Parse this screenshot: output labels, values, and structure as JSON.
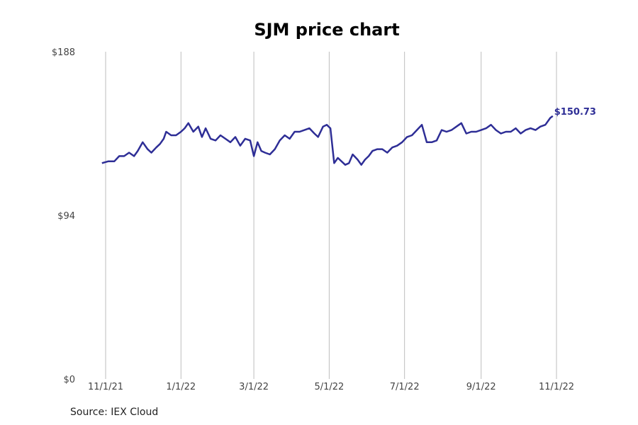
{
  "chart_data": {
    "type": "line",
    "title": "SJM price chart",
    "source": "Source: IEX Cloud",
    "ylim": [
      0,
      188
    ],
    "y_ticks": [
      "$188",
      "$94",
      "$0"
    ],
    "y_tick_values": [
      188,
      94,
      0
    ],
    "x_ticks": [
      "11/1/21",
      "1/1/22",
      "3/1/22",
      "5/1/22",
      "7/1/22",
      "9/1/22",
      "11/1/22"
    ],
    "x_tick_dates": [
      "2021-11-01",
      "2022-01-01",
      "2022-03-01",
      "2022-05-01",
      "2022-07-01",
      "2022-09-01",
      "2022-11-01"
    ],
    "grid": "vertical",
    "end_label": "$150.73",
    "line_color": "#2e2e96",
    "series": [
      {
        "x": [
          "2021-10-29",
          "2021-11-03",
          "2021-11-08",
          "2021-11-12",
          "2021-11-16",
          "2021-11-20",
          "2021-11-24",
          "2021-11-27",
          "2021-12-01",
          "2021-12-05",
          "2021-12-08",
          "2021-12-12",
          "2021-12-15",
          "2021-12-18",
          "2021-12-20",
          "2021-12-24",
          "2021-12-28",
          "2022-01-01",
          "2022-01-04",
          "2022-01-07",
          "2022-01-11",
          "2022-01-15",
          "2022-01-18",
          "2022-01-21",
          "2022-01-25",
          "2022-01-29",
          "2022-02-02",
          "2022-02-06",
          "2022-02-10",
          "2022-02-14",
          "2022-02-18",
          "2022-02-22",
          "2022-02-26",
          "2022-03-01",
          "2022-03-04",
          "2022-03-07",
          "2022-03-10",
          "2022-03-14",
          "2022-03-18",
          "2022-03-22",
          "2022-03-26",
          "2022-03-30",
          "2022-04-03",
          "2022-04-07",
          "2022-04-11",
          "2022-04-15",
          "2022-04-19",
          "2022-04-22",
          "2022-04-26",
          "2022-04-29",
          "2022-05-02",
          "2022-05-05",
          "2022-05-08",
          "2022-05-11",
          "2022-05-14",
          "2022-05-17",
          "2022-05-20",
          "2022-05-24",
          "2022-05-27",
          "2022-05-30",
          "2022-06-02",
          "2022-06-05",
          "2022-06-09",
          "2022-06-13",
          "2022-06-17",
          "2022-06-21",
          "2022-06-25",
          "2022-06-29",
          "2022-07-03",
          "2022-07-07",
          "2022-07-11",
          "2022-07-15",
          "2022-07-19",
          "2022-07-23",
          "2022-07-27",
          "2022-07-31",
          "2022-08-04",
          "2022-08-08",
          "2022-08-12",
          "2022-08-16",
          "2022-08-20",
          "2022-08-24",
          "2022-08-28",
          "2022-09-01",
          "2022-09-05",
          "2022-09-09",
          "2022-09-13",
          "2022-09-17",
          "2022-09-21",
          "2022-09-25",
          "2022-09-29",
          "2022-10-03",
          "2022-10-07",
          "2022-10-11",
          "2022-10-15",
          "2022-10-19",
          "2022-10-23",
          "2022-10-27",
          "2022-10-29"
        ],
        "values": [
          124,
          125,
          125,
          128,
          128,
          130,
          128,
          131,
          136,
          132,
          130,
          133,
          135,
          138,
          142,
          140,
          140,
          142,
          144,
          147,
          142,
          145,
          139,
          144,
          138,
          137,
          140,
          138,
          136,
          139,
          134,
          138,
          137,
          128,
          136,
          131,
          130,
          129,
          132,
          137,
          140,
          138,
          142,
          142,
          143,
          144,
          141,
          139,
          145,
          146,
          144,
          124,
          127,
          125,
          123,
          124,
          129,
          126,
          123,
          126,
          128,
          131,
          132,
          132,
          130,
          133,
          134,
          136,
          139,
          140,
          143,
          146,
          136,
          136,
          137,
          143,
          142,
          143,
          145,
          147,
          141,
          142,
          142,
          143,
          144,
          146,
          143,
          141,
          142,
          142,
          144,
          141,
          143,
          144,
          143,
          145,
          146,
          150,
          151
        ]
      }
    ]
  }
}
